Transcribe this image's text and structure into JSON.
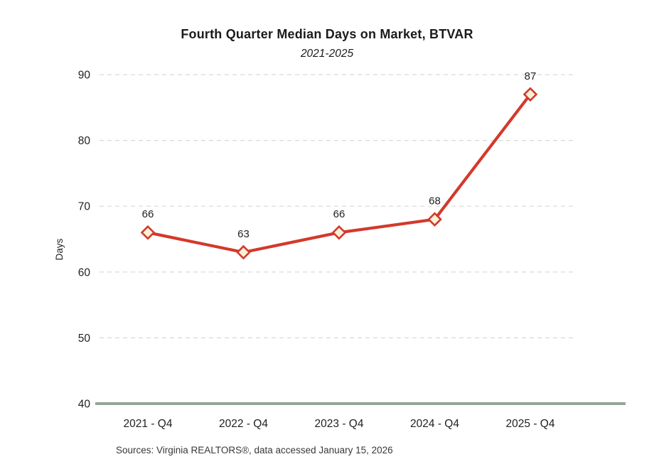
{
  "chart_data": {
    "type": "line",
    "title": "Fourth Quarter Median Days on Market, BTVAR",
    "subtitle": "2021-2025",
    "categories": [
      "2021 - Q4",
      "2022 - Q4",
      "2023 - Q4",
      "2024 - Q4",
      "2025 - Q4"
    ],
    "values": [
      66,
      63,
      66,
      68,
      87
    ],
    "data_labels": [
      "66",
      "63",
      "66",
      "68",
      "87"
    ],
    "xlabel": "",
    "ylabel": "Days",
    "ylim": [
      40,
      90
    ],
    "ytick_step": 10,
    "yticks": [
      40,
      50,
      60,
      70,
      80,
      90
    ],
    "grid": "horizontal-dashed",
    "legend": "none",
    "marker": "diamond",
    "source": "Sources: Virginia REALTORS®, data accessed January 15, 2026"
  },
  "colors": {
    "line": "#d3392b",
    "marker_fill": "#f7f1d7",
    "marker_stroke": "#d3392b",
    "gridline": "#d9d9d9",
    "axis_line": "#94a69b",
    "tick_text": "#1f1f1f",
    "title_text": "#1b1b1b",
    "source_text": "#383838",
    "background": "#ffffff"
  }
}
